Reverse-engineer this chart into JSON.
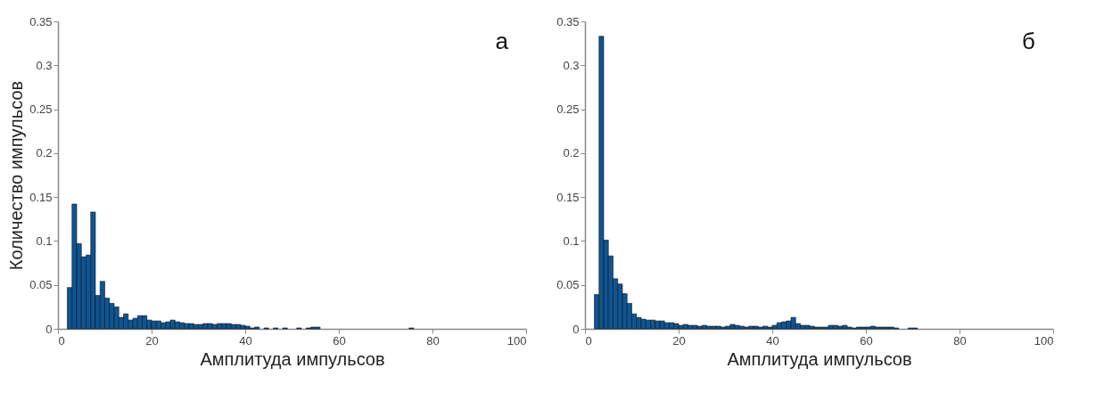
{
  "chart_data": [
    {
      "type": "histogram",
      "xlabel": "Амплитуда импульсов",
      "ylabel": "Количество импульсов",
      "annotations": [
        "а"
      ],
      "color": "#0d5594",
      "grid": false,
      "bins": [
        2,
        3,
        4,
        5,
        6,
        7,
        8,
        9,
        10,
        11,
        12,
        13,
        14,
        15,
        16,
        17,
        18,
        19,
        20,
        21,
        22,
        23,
        24,
        25,
        26,
        27,
        28,
        29,
        30,
        31,
        32,
        33,
        34,
        35,
        36,
        37,
        38,
        39,
        40,
        41,
        42,
        43,
        44,
        45,
        46,
        47,
        48,
        49,
        50,
        51,
        52,
        53,
        54,
        55,
        56,
        57,
        58,
        59,
        60,
        61,
        62,
        63,
        64,
        65,
        66,
        67,
        68,
        69,
        70,
        71,
        72,
        73,
        74,
        75,
        76,
        77
      ],
      "values": [
        0.047,
        0.142,
        0.097,
        0.082,
        0.084,
        0.133,
        0.038,
        0.054,
        0.035,
        0.029,
        0.025,
        0.013,
        0.017,
        0.01,
        0.012,
        0.015,
        0.015,
        0.01,
        0.009,
        0.009,
        0.007,
        0.008,
        0.01,
        0.008,
        0.007,
        0.006,
        0.006,
        0.005,
        0.005,
        0.006,
        0.006,
        0.005,
        0.006,
        0.006,
        0.006,
        0.005,
        0.005,
        0.004,
        0.003,
        0.001,
        0.002,
        0,
        0.001,
        0,
        0.001,
        0,
        0.001,
        0,
        0,
        0.001,
        0,
        0.001,
        0.002,
        0.002,
        0,
        0,
        0,
        0,
        0,
        0,
        0,
        0,
        0,
        0,
        0,
        0,
        0,
        0,
        0,
        0,
        0,
        0,
        0,
        0.001,
        0
      ],
      "xlim": [
        0,
        100
      ],
      "xticks": [
        0,
        20,
        40,
        60,
        80,
        100
      ],
      "ylim": [
        0,
        0.35
      ],
      "yticks": [
        0,
        0.05,
        0.1,
        0.15,
        0.2,
        0.25,
        0.3,
        0.35
      ]
    },
    {
      "type": "histogram",
      "xlabel": "Амплитуда импульсов",
      "annotations": [
        "б"
      ],
      "color": "#0d5594",
      "grid": false,
      "bins": [
        2,
        3,
        4,
        5,
        6,
        7,
        8,
        9,
        10,
        11,
        12,
        13,
        14,
        15,
        16,
        17,
        18,
        19,
        20,
        21,
        22,
        23,
        24,
        25,
        26,
        27,
        28,
        29,
        30,
        31,
        32,
        33,
        34,
        35,
        36,
        37,
        38,
        39,
        40,
        41,
        42,
        43,
        44,
        45,
        46,
        47,
        48,
        49,
        50,
        51,
        52,
        53,
        54,
        55,
        56,
        57,
        58,
        59,
        60,
        61,
        62,
        63,
        64,
        65,
        66,
        67,
        68,
        69,
        70,
        71,
        72
      ],
      "values": [
        0.039,
        0.333,
        0.101,
        0.083,
        0.057,
        0.051,
        0.04,
        0.029,
        0.017,
        0.013,
        0.011,
        0.01,
        0.01,
        0.009,
        0.009,
        0.007,
        0.007,
        0.006,
        0.004,
        0.005,
        0.004,
        0.004,
        0.003,
        0.004,
        0.003,
        0.003,
        0.003,
        0.002,
        0.003,
        0.005,
        0.004,
        0.003,
        0.002,
        0.003,
        0.003,
        0.002,
        0.003,
        0.002,
        0.004,
        0.007,
        0.008,
        0.009,
        0.013,
        0.006,
        0.004,
        0.004,
        0.003,
        0.002,
        0.002,
        0.002,
        0.004,
        0.004,
        0.003,
        0.004,
        0.002,
        0.001,
        0.002,
        0.002,
        0.002,
        0.003,
        0.002,
        0.002,
        0.002,
        0.002,
        0.001,
        0,
        0,
        0.001,
        0.001,
        0
      ],
      "xlim": [
        0,
        100
      ],
      "xticks": [
        0,
        20,
        40,
        60,
        80,
        100
      ],
      "ylim": [
        0,
        0.35
      ],
      "yticks": [
        0,
        0.05,
        0.1,
        0.15,
        0.2,
        0.25,
        0.3,
        0.35
      ]
    }
  ]
}
